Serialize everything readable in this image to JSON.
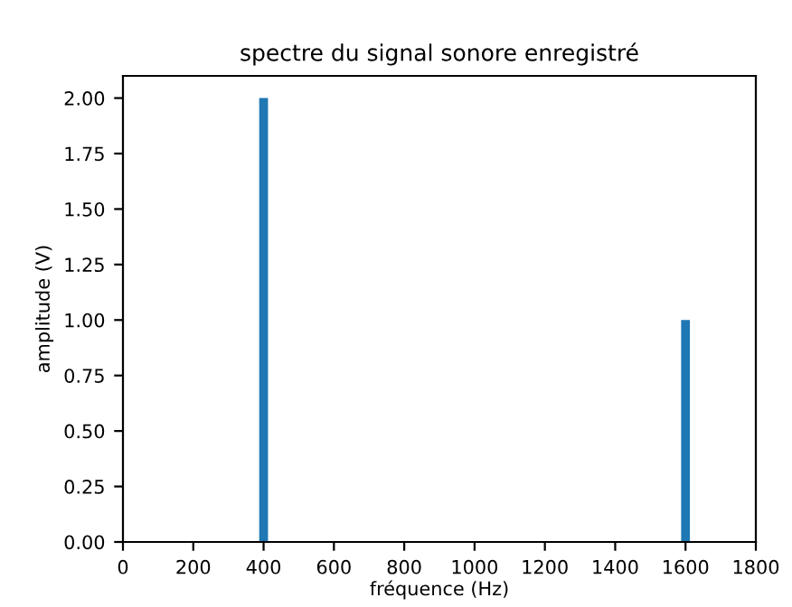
{
  "chart_data": {
    "type": "bar",
    "title": "spectre du signal sonore enregistré",
    "xlabel": "fréquence (Hz)",
    "ylabel": "amplitude (V)",
    "x": [
      400,
      1600
    ],
    "values": [
      2.0,
      1.0
    ],
    "color": "#1f77b4",
    "xlim": [
      0,
      1800
    ],
    "xticks": [
      0,
      200,
      400,
      600,
      800,
      1000,
      1200,
      1400,
      1600,
      1800
    ],
    "ylim": [
      0,
      2.1
    ],
    "yticks": [
      {
        "value": 0,
        "label": "0.00"
      },
      {
        "value": 0.25,
        "label": "0.25"
      },
      {
        "value": 0.5,
        "label": "0.50"
      },
      {
        "value": 0.75,
        "label": "0.75"
      },
      {
        "value": 1.0,
        "label": "1.00"
      },
      {
        "value": 1.25,
        "label": "1.25"
      },
      {
        "value": 1.5,
        "label": "1.50"
      },
      {
        "value": 1.75,
        "label": "1.75"
      },
      {
        "value": 2.0,
        "label": "2.00"
      }
    ],
    "grid": false
  }
}
